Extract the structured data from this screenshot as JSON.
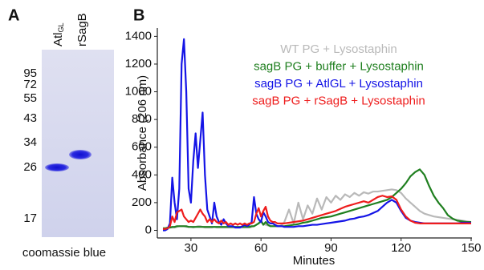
{
  "panel_a": {
    "label": "A",
    "lanes": [
      {
        "text": "Atl",
        "sub": "GL"
      },
      {
        "text": "rSagB"
      }
    ],
    "markers": [
      95,
      72,
      55,
      43,
      34,
      26,
      17
    ],
    "caption": "coomassie blue"
  },
  "chart_data": {
    "type": "line",
    "panel_label": "B",
    "x_label": "Minutes",
    "y_label": "Absorbance (206 nm)",
    "xlim": [
      15.6,
      150
    ],
    "xticks": [
      30,
      60,
      90,
      120,
      150
    ],
    "ylim": [
      -55,
      1460
    ],
    "yticks": [
      0,
      200,
      400,
      600,
      800,
      1000,
      1200,
      1400
    ],
    "legend": "upper right",
    "grid": false,
    "x": [
      18,
      19,
      20,
      21,
      22,
      23,
      24,
      25,
      26,
      27,
      28,
      29,
      30,
      31,
      32,
      33,
      34,
      35,
      36,
      37,
      38,
      39,
      40,
      41,
      42,
      43,
      44,
      45,
      46,
      47,
      48,
      49,
      50,
      51,
      52,
      53,
      54,
      55,
      56,
      57,
      58,
      59,
      60,
      61,
      62,
      63,
      64,
      65,
      66,
      67,
      68,
      69,
      70,
      72,
      74,
      76,
      78,
      80,
      82,
      84,
      86,
      88,
      90,
      92,
      94,
      96,
      98,
      100,
      102,
      104,
      106,
      108,
      110,
      112,
      114,
      116,
      118,
      120,
      122,
      124,
      126,
      128,
      130,
      132,
      134,
      136,
      138,
      140,
      142,
      144,
      146,
      148,
      150
    ],
    "series": [
      {
        "name": "WT PG + Lysostaphin",
        "color": "#b9b9b9",
        "values": [
          10,
          10,
          15,
          20,
          20,
          20,
          25,
          30,
          30,
          30,
          25,
          25,
          25,
          20,
          25,
          30,
          30,
          25,
          20,
          20,
          20,
          20,
          25,
          20,
          20,
          20,
          20,
          20,
          20,
          20,
          20,
          20,
          20,
          20,
          20,
          20,
          20,
          20,
          25,
          30,
          40,
          50,
          60,
          45,
          40,
          35,
          30,
          30,
          30,
          30,
          30,
          40,
          60,
          150,
          50,
          200,
          80,
          180,
          120,
          230,
          150,
          240,
          200,
          250,
          220,
          260,
          240,
          270,
          250,
          275,
          265,
          280,
          280,
          285,
          290,
          295,
          290,
          270,
          230,
          200,
          170,
          140,
          120,
          110,
          100,
          95,
          90,
          85,
          80,
          75,
          70,
          65,
          60
        ]
      },
      {
        "name": "sagB PG + buffer + Lysostaphin",
        "color": "#1f7f1f",
        "values": [
          15,
          15,
          20,
          20,
          25,
          25,
          30,
          30,
          30,
          30,
          30,
          25,
          25,
          25,
          25,
          25,
          25,
          25,
          25,
          25,
          25,
          25,
          25,
          25,
          25,
          25,
          25,
          25,
          25,
          25,
          25,
          25,
          25,
          25,
          25,
          25,
          25,
          25,
          30,
          30,
          40,
          50,
          70,
          40,
          60,
          40,
          30,
          30,
          30,
          30,
          30,
          30,
          30,
          35,
          40,
          45,
          55,
          60,
          70,
          80,
          90,
          95,
          100,
          110,
          120,
          130,
          140,
          150,
          160,
          170,
          180,
          190,
          200,
          210,
          220,
          240,
          270,
          300,
          340,
          390,
          420,
          440,
          400,
          320,
          250,
          200,
          160,
          110,
          85,
          70,
          65,
          60,
          60
        ]
      },
      {
        "name": "sagB PG + AtlGL + Lysostaphin",
        "color": "#1414e6",
        "values": [
          0,
          0,
          10,
          50,
          380,
          200,
          80,
          300,
          1200,
          1380,
          1000,
          300,
          200,
          500,
          700,
          450,
          650,
          850,
          400,
          150,
          100,
          50,
          200,
          100,
          60,
          40,
          80,
          50,
          30,
          30,
          30,
          20,
          20,
          20,
          30,
          40,
          30,
          40,
          60,
          240,
          120,
          80,
          60,
          130,
          100,
          60,
          50,
          50,
          40,
          30,
          30,
          30,
          25,
          25,
          25,
          30,
          30,
          35,
          40,
          40,
          45,
          50,
          55,
          60,
          65,
          70,
          80,
          85,
          95,
          100,
          110,
          125,
          140,
          170,
          200,
          220,
          200,
          140,
          90,
          70,
          60,
          55,
          50,
          50,
          50,
          50,
          50,
          50,
          50,
          50,
          55,
          55,
          55
        ]
      },
      {
        "name": "sagB PG + rSagB + Lysostaphin",
        "color": "#ee1d1d",
        "values": [
          10,
          10,
          15,
          30,
          100,
          60,
          130,
          140,
          150,
          100,
          80,
          60,
          70,
          60,
          90,
          120,
          150,
          120,
          100,
          60,
          80,
          60,
          80,
          60,
          50,
          70,
          50,
          60,
          40,
          50,
          40,
          50,
          40,
          50,
          40,
          50,
          40,
          50,
          50,
          60,
          120,
          160,
          100,
          140,
          170,
          100,
          70,
          60,
          60,
          50,
          50,
          50,
          50,
          55,
          60,
          65,
          70,
          80,
          90,
          100,
          110,
          120,
          130,
          140,
          155,
          170,
          180,
          190,
          200,
          210,
          200,
          220,
          240,
          250,
          240,
          245,
          220,
          150,
          100,
          70,
          55,
          50,
          50,
          50,
          50,
          50,
          50,
          50,
          50,
          50,
          50,
          50,
          50
        ]
      }
    ]
  }
}
